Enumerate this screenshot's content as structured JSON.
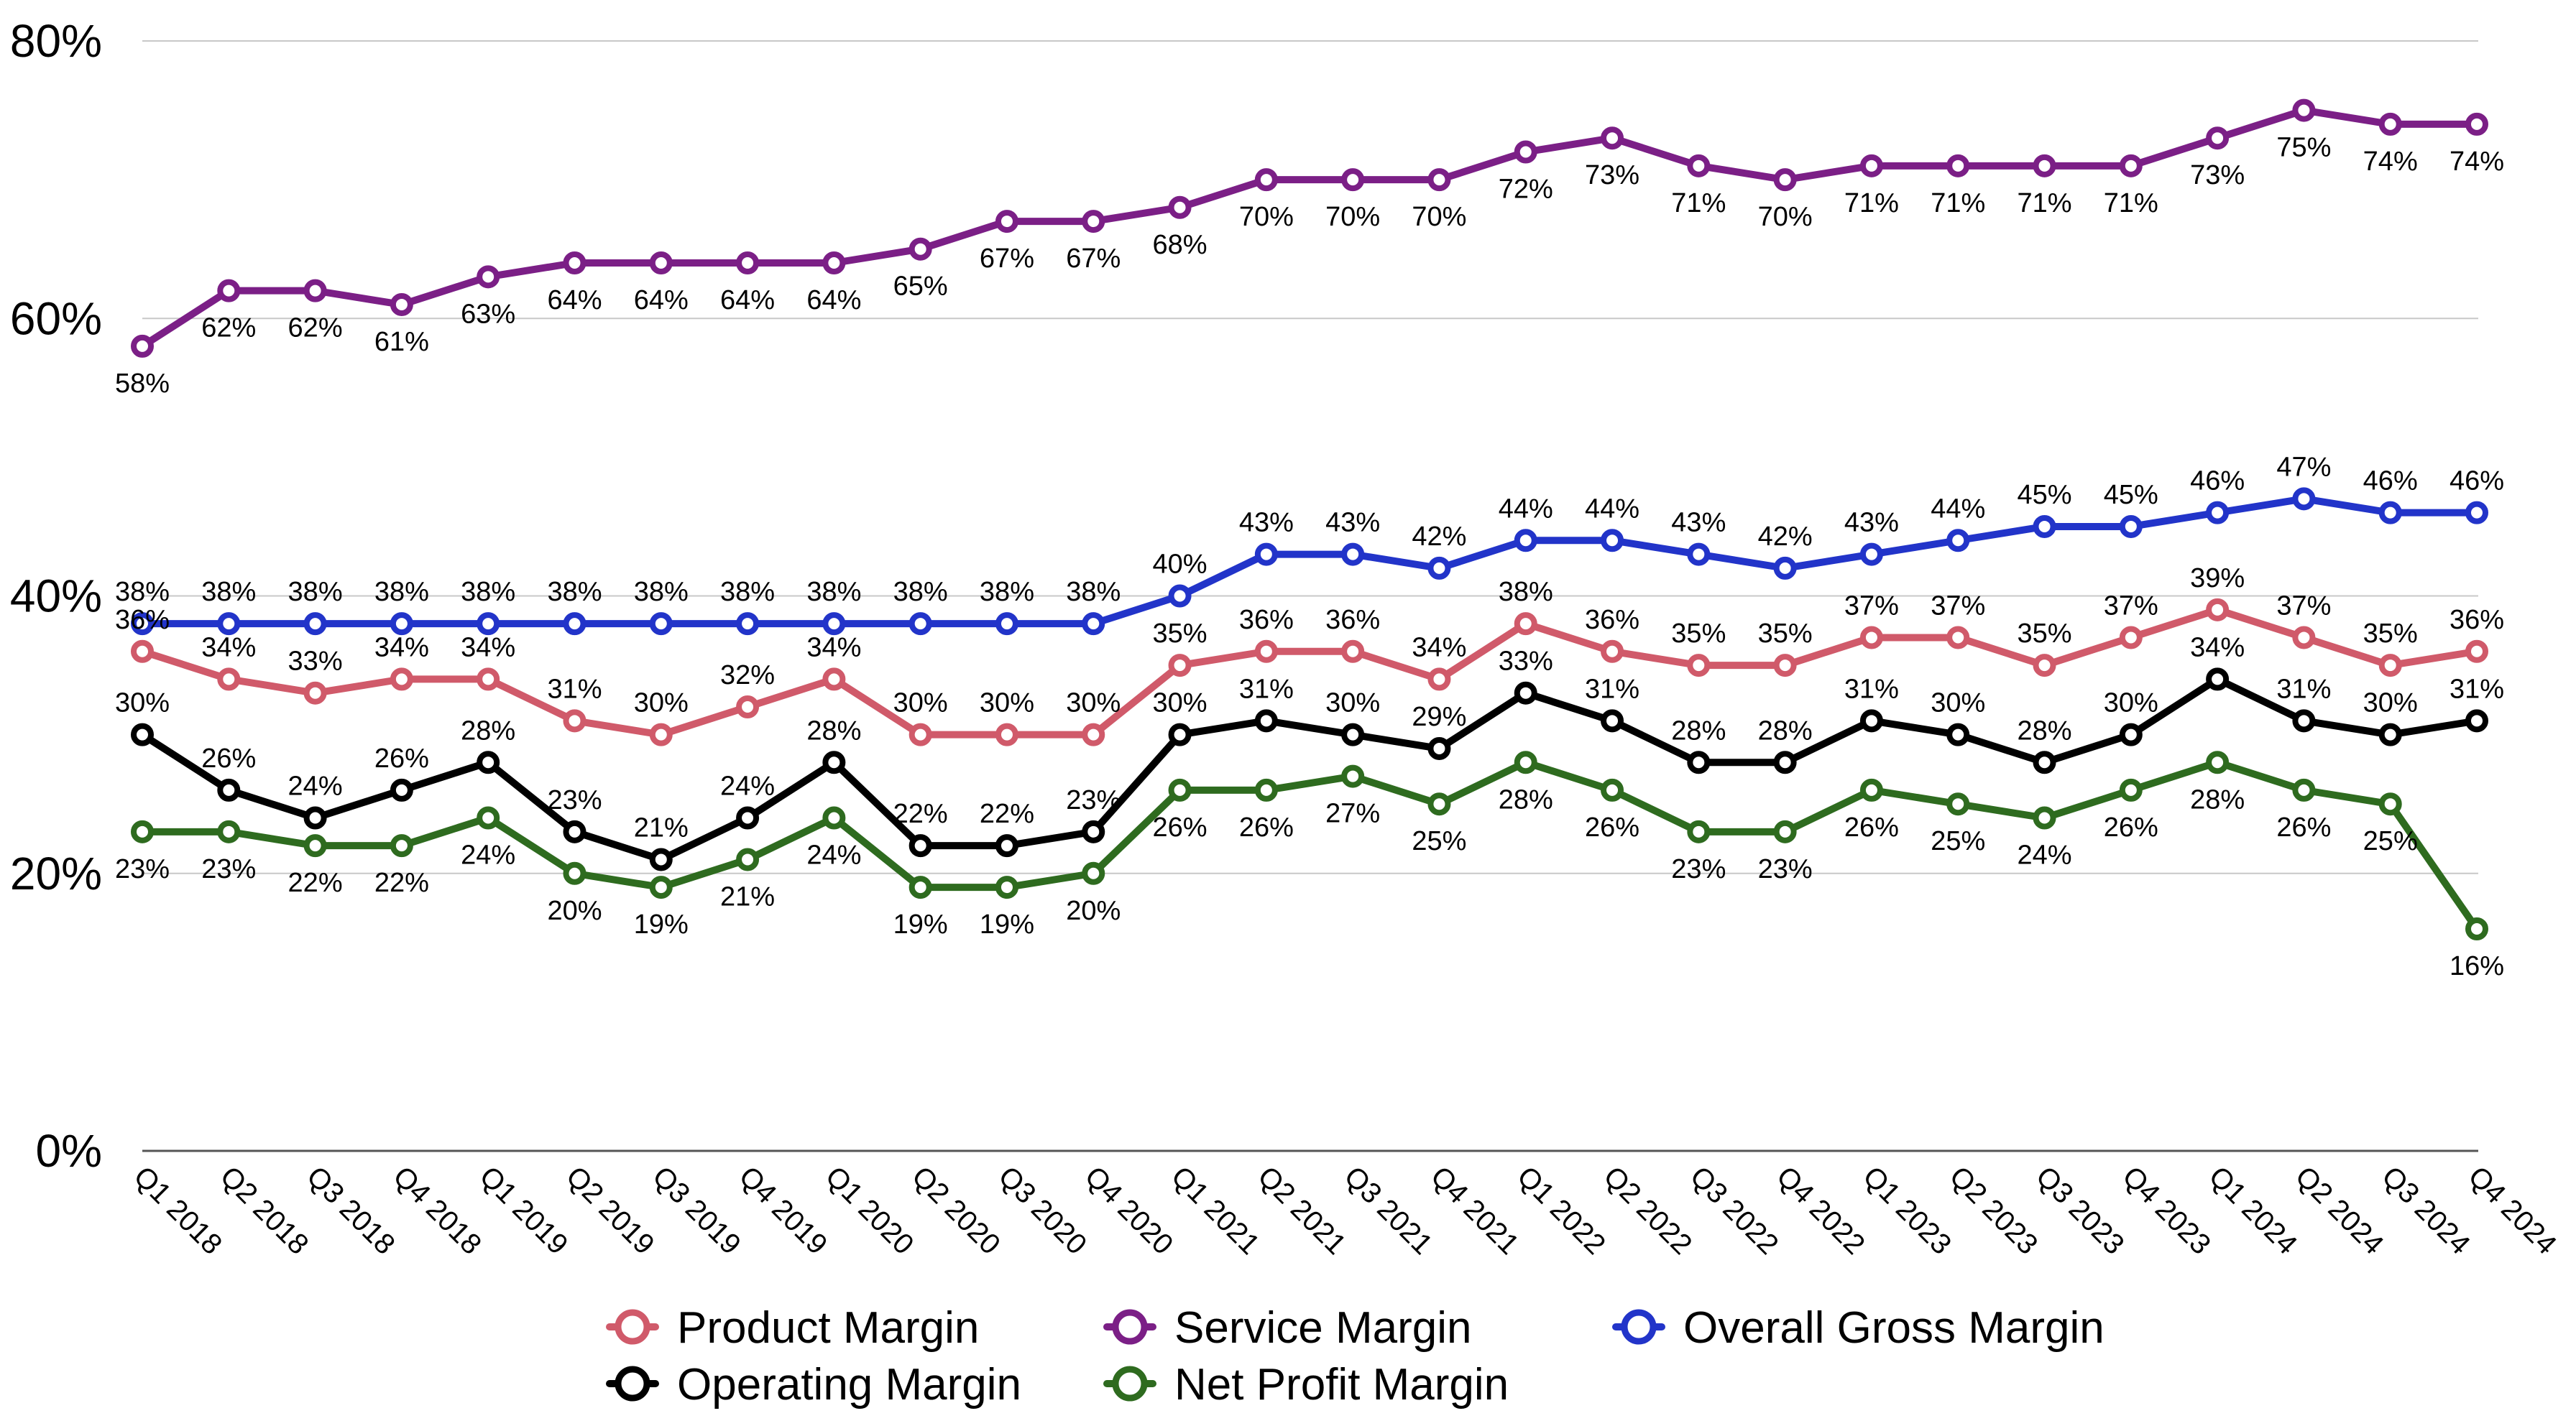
{
  "chart_data": {
    "type": "line",
    "title": "",
    "xlabel": "",
    "ylabel": "",
    "ylim": [
      0,
      80
    ],
    "y_ticks": [
      "0%",
      "20%",
      "40%",
      "60%",
      "80%"
    ],
    "grid": "horizontal",
    "legend_position": "bottom",
    "categories": [
      "Q1 2018",
      "Q2 2018",
      "Q3 2018",
      "Q4 2018",
      "Q1 2019",
      "Q2 2019",
      "Q3 2019",
      "Q4 2019",
      "Q1 2020",
      "Q2 2020",
      "Q3 2020",
      "Q4 2020",
      "Q1 2021",
      "Q2 2021",
      "Q3 2021",
      "Q4 2021",
      "Q1 2022",
      "Q2 2022",
      "Q3 2022",
      "Q4 2022",
      "Q1 2023",
      "Q2 2023",
      "Q3 2023",
      "Q4 2023",
      "Q1 2024",
      "Q2 2024",
      "Q3 2024",
      "Q4 2024"
    ],
    "series": [
      {
        "name": "Product Margin",
        "color": "#d05a6a",
        "values": [
          36,
          34,
          33,
          34,
          34,
          31,
          30,
          32,
          34,
          30,
          30,
          30,
          35,
          36,
          36,
          34,
          38,
          36,
          35,
          35,
          37,
          37,
          35,
          37,
          39,
          37,
          35,
          36
        ]
      },
      {
        "name": "Service Margin",
        "color": "#7b1f86",
        "values": [
          58,
          62,
          62,
          61,
          63,
          64,
          64,
          64,
          64,
          65,
          67,
          67,
          68,
          70,
          70,
          70,
          72,
          73,
          71,
          70,
          71,
          71,
          71,
          71,
          73,
          75,
          74,
          74
        ]
      },
      {
        "name": "Overall Gross Margin",
        "color": "#2234c9",
        "values": [
          38,
          38,
          38,
          38,
          38,
          38,
          38,
          38,
          38,
          38,
          38,
          38,
          40,
          43,
          43,
          42,
          44,
          44,
          43,
          42,
          43,
          44,
          45,
          45,
          46,
          47,
          46,
          46
        ]
      },
      {
        "name": "Operating Margin",
        "color": "#000000",
        "values": [
          30,
          26,
          24,
          26,
          28,
          23,
          21,
          24,
          28,
          22,
          22,
          23,
          30,
          31,
          30,
          29,
          33,
          31,
          28,
          28,
          31,
          30,
          28,
          30,
          34,
          31,
          30,
          31
        ]
      },
      {
        "name": "Net Profit Margin",
        "color": "#2e6b1f",
        "values": [
          23,
          23,
          22,
          22,
          24,
          20,
          19,
          21,
          24,
          19,
          19,
          20,
          26,
          26,
          27,
          25,
          28,
          26,
          23,
          23,
          26,
          25,
          24,
          26,
          28,
          26,
          25,
          16
        ]
      }
    ]
  }
}
